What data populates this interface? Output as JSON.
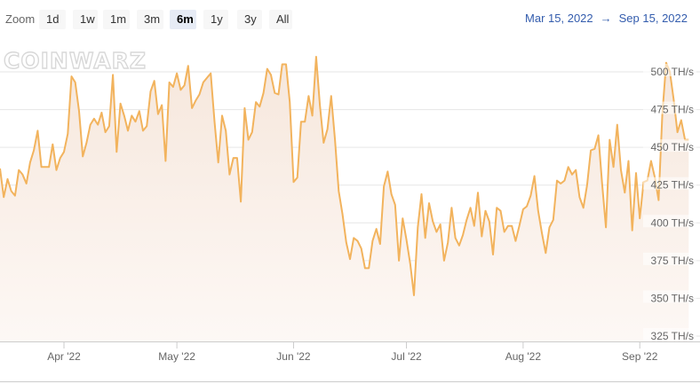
{
  "toolbar": {
    "zoom_label": "Zoom",
    "ranges": [
      "1d",
      "1w",
      "1m",
      "3m",
      "6m",
      "1y",
      "3y",
      "All"
    ],
    "active_range": "6m",
    "date_from": "Mar 15, 2022",
    "date_sep": "→",
    "date_to": "Sep 15, 2022"
  },
  "watermark": "COINWARZ",
  "colors": {
    "line": "#f2b35d",
    "fill_top": "#f6e7dc",
    "fill_bottom": "#fdf8f5",
    "grid": "#e6e6e6",
    "date_text": "#335cad"
  },
  "chart_data": {
    "type": "area",
    "title": "",
    "xlabel": "",
    "ylabel": "",
    "y_unit": "TH/s",
    "ylim": [
      320,
      510
    ],
    "y_ticks": [
      325,
      350,
      375,
      400,
      425,
      450,
      475,
      500
    ],
    "y_tick_labels": [
      "325 TH/s",
      "350 TH/s",
      "375 TH/s",
      "400 TH/s",
      "425 TH/s",
      "450 TH/s",
      "475 TH/s",
      "500 TH/s"
    ],
    "x_range": [
      "2022-03-15",
      "2022-09-17"
    ],
    "x_ticks": [
      "2022-04-01",
      "2022-05-01",
      "2022-06-01",
      "2022-07-01",
      "2022-08-01",
      "2022-09-01"
    ],
    "x_tick_labels": [
      "Apr '22",
      "May '22",
      "Jun '22",
      "Jul '22",
      "Aug '22",
      "Sep '22"
    ],
    "grid": true,
    "series": [
      {
        "values": [
          [
            "2022-03-15",
            436
          ],
          [
            "2022-03-16",
            417
          ],
          [
            "2022-03-17",
            429
          ],
          [
            "2022-03-18",
            421
          ],
          [
            "2022-03-19",
            418
          ],
          [
            "2022-03-20",
            435
          ],
          [
            "2022-03-21",
            432
          ],
          [
            "2022-03-22",
            426
          ],
          [
            "2022-03-23",
            440
          ],
          [
            "2022-03-24",
            448
          ],
          [
            "2022-03-25",
            461
          ],
          [
            "2022-03-26",
            437
          ],
          [
            "2022-03-27",
            437
          ],
          [
            "2022-03-28",
            437
          ],
          [
            "2022-03-29",
            452
          ],
          [
            "2022-03-30",
            435
          ],
          [
            "2022-03-31",
            443
          ],
          [
            "2022-04-01",
            447
          ],
          [
            "2022-04-02",
            459
          ],
          [
            "2022-04-03",
            497
          ],
          [
            "2022-04-04",
            493
          ],
          [
            "2022-04-05",
            474
          ],
          [
            "2022-04-06",
            444
          ],
          [
            "2022-04-07",
            453
          ],
          [
            "2022-04-08",
            465
          ],
          [
            "2022-04-09",
            469
          ],
          [
            "2022-04-10",
            465
          ],
          [
            "2022-04-11",
            473
          ],
          [
            "2022-04-12",
            460
          ],
          [
            "2022-04-13",
            464
          ],
          [
            "2022-04-14",
            498
          ],
          [
            "2022-04-15",
            447
          ],
          [
            "2022-04-16",
            479
          ],
          [
            "2022-04-17",
            471
          ],
          [
            "2022-04-18",
            461
          ],
          [
            "2022-04-19",
            471
          ],
          [
            "2022-04-20",
            467
          ],
          [
            "2022-04-21",
            474
          ],
          [
            "2022-04-22",
            461
          ],
          [
            "2022-04-23",
            464
          ],
          [
            "2022-04-24",
            487
          ],
          [
            "2022-04-25",
            494
          ],
          [
            "2022-04-26",
            472
          ],
          [
            "2022-04-27",
            478
          ],
          [
            "2022-04-28",
            441
          ],
          [
            "2022-04-29",
            493
          ],
          [
            "2022-04-30",
            490
          ],
          [
            "2022-05-01",
            499
          ],
          [
            "2022-05-02",
            488
          ],
          [
            "2022-05-03",
            491
          ],
          [
            "2022-05-04",
            504
          ],
          [
            "2022-05-05",
            476
          ],
          [
            "2022-05-06",
            481
          ],
          [
            "2022-05-07",
            485
          ],
          [
            "2022-05-08",
            493
          ],
          [
            "2022-05-09",
            496
          ],
          [
            "2022-05-10",
            499
          ],
          [
            "2022-05-11",
            467
          ],
          [
            "2022-05-12",
            440
          ],
          [
            "2022-05-13",
            471
          ],
          [
            "2022-05-14",
            461
          ],
          [
            "2022-05-15",
            432
          ],
          [
            "2022-05-16",
            443
          ],
          [
            "2022-05-17",
            443
          ],
          [
            "2022-05-18",
            414
          ],
          [
            "2022-05-19",
            476
          ],
          [
            "2022-05-20",
            455
          ],
          [
            "2022-05-21",
            460
          ],
          [
            "2022-05-22",
            480
          ],
          [
            "2022-05-23",
            477
          ],
          [
            "2022-05-24",
            486
          ],
          [
            "2022-05-25",
            502
          ],
          [
            "2022-05-26",
            498
          ],
          [
            "2022-05-27",
            486
          ],
          [
            "2022-05-28",
            485
          ],
          [
            "2022-05-29",
            505
          ],
          [
            "2022-05-30",
            505
          ],
          [
            "2022-05-31",
            480
          ],
          [
            "2022-06-01",
            427
          ],
          [
            "2022-06-02",
            430
          ],
          [
            "2022-06-03",
            467
          ],
          [
            "2022-06-04",
            467
          ],
          [
            "2022-06-05",
            484
          ],
          [
            "2022-06-06",
            471
          ],
          [
            "2022-06-07",
            510
          ],
          [
            "2022-06-08",
            478
          ],
          [
            "2022-06-09",
            453
          ],
          [
            "2022-06-10",
            462
          ],
          [
            "2022-06-11",
            484
          ],
          [
            "2022-06-12",
            455
          ],
          [
            "2022-06-13",
            421
          ],
          [
            "2022-06-14",
            406
          ],
          [
            "2022-06-15",
            387
          ],
          [
            "2022-06-16",
            376
          ],
          [
            "2022-06-17",
            390
          ],
          [
            "2022-06-18",
            388
          ],
          [
            "2022-06-19",
            383
          ],
          [
            "2022-06-20",
            370
          ],
          [
            "2022-06-21",
            370
          ],
          [
            "2022-06-22",
            388
          ],
          [
            "2022-06-23",
            396
          ],
          [
            "2022-06-24",
            386
          ],
          [
            "2022-06-25",
            424
          ],
          [
            "2022-06-26",
            434
          ],
          [
            "2022-06-27",
            419
          ],
          [
            "2022-06-28",
            412
          ],
          [
            "2022-06-29",
            375
          ],
          [
            "2022-06-30",
            403
          ],
          [
            "2022-07-01",
            389
          ],
          [
            "2022-07-02",
            373
          ],
          [
            "2022-07-03",
            352
          ],
          [
            "2022-07-04",
            397
          ],
          [
            "2022-07-05",
            419
          ],
          [
            "2022-07-06",
            390
          ],
          [
            "2022-07-07",
            413
          ],
          [
            "2022-07-08",
            401
          ],
          [
            "2022-07-09",
            394
          ],
          [
            "2022-07-10",
            399
          ],
          [
            "2022-07-11",
            375
          ],
          [
            "2022-07-12",
            387
          ],
          [
            "2022-07-13",
            410
          ],
          [
            "2022-07-14",
            390
          ],
          [
            "2022-07-15",
            385
          ],
          [
            "2022-07-16",
            392
          ],
          [
            "2022-07-17",
            402
          ],
          [
            "2022-07-18",
            410
          ],
          [
            "2022-07-19",
            398
          ],
          [
            "2022-07-20",
            420
          ],
          [
            "2022-07-21",
            391
          ],
          [
            "2022-07-22",
            408
          ],
          [
            "2022-07-23",
            401
          ],
          [
            "2022-07-24",
            379
          ],
          [
            "2022-07-25",
            410
          ],
          [
            "2022-07-26",
            408
          ],
          [
            "2022-07-27",
            394
          ],
          [
            "2022-07-28",
            398
          ],
          [
            "2022-07-29",
            398
          ],
          [
            "2022-07-30",
            388
          ],
          [
            "2022-07-31",
            398
          ],
          [
            "2022-08-01",
            409
          ],
          [
            "2022-08-02",
            411
          ],
          [
            "2022-08-03",
            418
          ],
          [
            "2022-08-04",
            431
          ],
          [
            "2022-08-05",
            408
          ],
          [
            "2022-08-06",
            393
          ],
          [
            "2022-08-07",
            380
          ],
          [
            "2022-08-08",
            397
          ],
          [
            "2022-08-09",
            402
          ],
          [
            "2022-08-10",
            428
          ],
          [
            "2022-08-11",
            426
          ],
          [
            "2022-08-12",
            428
          ],
          [
            "2022-08-13",
            437
          ],
          [
            "2022-08-14",
            432
          ],
          [
            "2022-08-15",
            435
          ],
          [
            "2022-08-16",
            417
          ],
          [
            "2022-08-17",
            410
          ],
          [
            "2022-08-18",
            425
          ],
          [
            "2022-08-19",
            448
          ],
          [
            "2022-08-20",
            449
          ],
          [
            "2022-08-21",
            458
          ],
          [
            "2022-08-22",
            426
          ],
          [
            "2022-08-23",
            397
          ],
          [
            "2022-08-24",
            455
          ],
          [
            "2022-08-25",
            437
          ],
          [
            "2022-08-26",
            465
          ],
          [
            "2022-08-27",
            435
          ],
          [
            "2022-08-28",
            420
          ],
          [
            "2022-08-29",
            441
          ],
          [
            "2022-08-30",
            395
          ],
          [
            "2022-08-31",
            433
          ],
          [
            "2022-09-01",
            403
          ],
          [
            "2022-09-02",
            427
          ],
          [
            "2022-09-03",
            428
          ],
          [
            "2022-09-04",
            441
          ],
          [
            "2022-09-05",
            430
          ],
          [
            "2022-09-06",
            415
          ],
          [
            "2022-09-07",
            472
          ],
          [
            "2022-09-08",
            506
          ],
          [
            "2022-09-09",
            500
          ],
          [
            "2022-09-10",
            482
          ],
          [
            "2022-09-11",
            460
          ],
          [
            "2022-09-12",
            468
          ],
          [
            "2022-09-13",
            455
          ],
          [
            "2022-09-14",
            455
          ]
        ]
      }
    ]
  }
}
